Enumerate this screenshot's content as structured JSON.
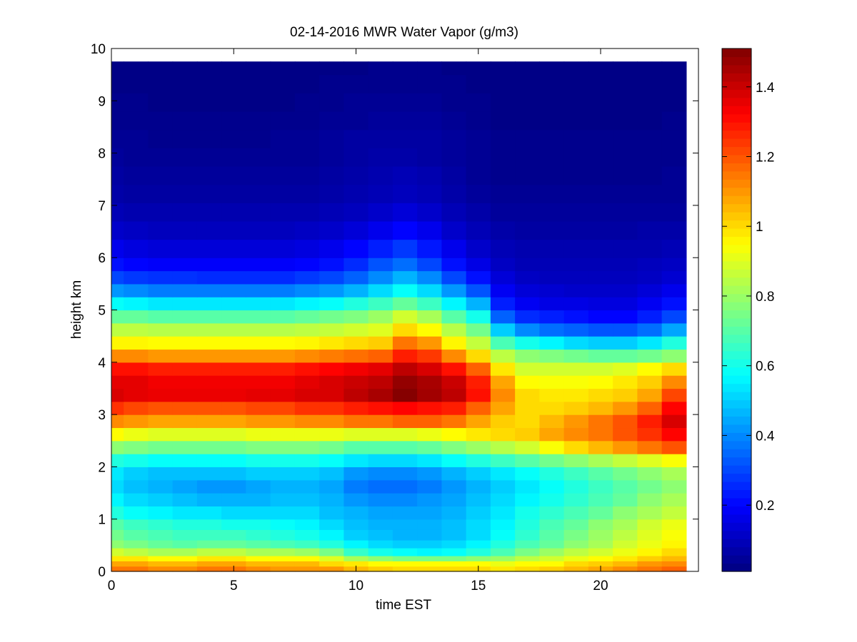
{
  "chart_data": {
    "type": "heatmap",
    "title": "02-14-2016 MWR Water Vapor (g/m3)",
    "xlabel": "time EST",
    "ylabel": "height km",
    "xlim": [
      0,
      24
    ],
    "ylim": [
      0,
      10
    ],
    "x_ticks": [
      "0",
      "5",
      "10",
      "15",
      "20"
    ],
    "y_ticks": [
      "0",
      "1",
      "2",
      "3",
      "4",
      "5",
      "6",
      "7",
      "8",
      "9",
      "10"
    ],
    "colorbar": {
      "colormap": "jet",
      "range": [
        0.01,
        1.51
      ],
      "ticks": [
        "0.2",
        "0.4",
        "0.6",
        "0.8",
        "1",
        "1.2",
        "1.4"
      ]
    },
    "data_extent": {
      "x": [
        0,
        23.5
      ],
      "y": [
        0,
        9.75
      ]
    },
    "times": [
      0,
      1,
      2,
      3,
      4,
      5,
      6,
      7,
      8,
      9,
      10,
      11,
      12,
      13,
      14,
      15,
      16,
      17,
      18,
      19,
      20,
      21,
      22,
      23
    ],
    "heights": [
      0,
      0.1,
      0.2,
      0.3,
      0.45,
      0.6,
      0.8,
      1.0,
      1.25,
      1.5,
      1.75,
      2.0,
      2.25,
      2.5,
      2.75,
      3.0,
      3.25,
      3.5,
      3.75,
      4.0,
      4.25,
      4.5,
      4.75,
      5.0,
      5.25,
      5.5,
      5.75,
      6.0,
      6.35,
      6.7,
      7.05,
      7.4,
      7.75,
      8.1,
      8.45,
      8.8,
      9.15,
      9.5,
      9.75
    ],
    "values": [
      [
        1.15,
        1.15,
        1.12,
        1.12,
        1.15,
        1.15,
        1.12,
        1.1,
        1.1,
        1.1,
        1.05,
        1.02,
        1.0,
        1.0,
        1.0,
        1.0,
        0.98,
        1.0,
        1.02,
        1.05,
        1.08,
        1.12,
        1.15,
        1.18
      ],
      [
        1.08,
        1.08,
        1.05,
        1.05,
        1.08,
        1.08,
        1.05,
        1.05,
        1.05,
        1.0,
        0.98,
        0.95,
        0.95,
        0.95,
        0.95,
        0.95,
        0.92,
        0.95,
        0.95,
        1.0,
        1.02,
        1.05,
        1.1,
        1.12
      ],
      [
        0.98,
        0.98,
        0.95,
        0.95,
        0.98,
        0.98,
        0.95,
        0.95,
        0.95,
        0.9,
        0.82,
        0.78,
        0.75,
        0.75,
        0.75,
        0.78,
        0.8,
        0.85,
        0.88,
        0.92,
        0.95,
        0.98,
        1.02,
        1.05
      ],
      [
        0.88,
        0.85,
        0.82,
        0.82,
        0.85,
        0.85,
        0.82,
        0.82,
        0.8,
        0.75,
        0.65,
        0.6,
        0.58,
        0.56,
        0.58,
        0.62,
        0.68,
        0.75,
        0.8,
        0.85,
        0.88,
        0.92,
        0.96,
        1.0
      ],
      [
        0.78,
        0.75,
        0.72,
        0.7,
        0.72,
        0.72,
        0.7,
        0.68,
        0.66,
        0.62,
        0.56,
        0.52,
        0.5,
        0.5,
        0.52,
        0.56,
        0.62,
        0.68,
        0.72,
        0.78,
        0.82,
        0.88,
        0.92,
        0.96
      ],
      [
        0.74,
        0.7,
        0.68,
        0.66,
        0.66,
        0.66,
        0.64,
        0.62,
        0.6,
        0.56,
        0.5,
        0.48,
        0.46,
        0.46,
        0.48,
        0.52,
        0.58,
        0.64,
        0.7,
        0.75,
        0.8,
        0.85,
        0.9,
        0.94
      ],
      [
        0.7,
        0.66,
        0.64,
        0.62,
        0.62,
        0.6,
        0.6,
        0.58,
        0.56,
        0.52,
        0.48,
        0.46,
        0.46,
        0.46,
        0.48,
        0.52,
        0.56,
        0.62,
        0.68,
        0.72,
        0.78,
        0.82,
        0.88,
        0.92
      ],
      [
        0.62,
        0.58,
        0.56,
        0.54,
        0.54,
        0.52,
        0.52,
        0.52,
        0.52,
        0.48,
        0.46,
        0.44,
        0.44,
        0.44,
        0.46,
        0.5,
        0.54,
        0.6,
        0.64,
        0.68,
        0.72,
        0.78,
        0.82,
        0.86
      ],
      [
        0.56,
        0.52,
        0.5,
        0.48,
        0.46,
        0.46,
        0.46,
        0.48,
        0.48,
        0.46,
        0.42,
        0.4,
        0.4,
        0.42,
        0.44,
        0.48,
        0.52,
        0.56,
        0.6,
        0.64,
        0.68,
        0.72,
        0.78,
        0.82
      ],
      [
        0.52,
        0.48,
        0.46,
        0.44,
        0.42,
        0.42,
        0.44,
        0.46,
        0.46,
        0.44,
        0.38,
        0.36,
        0.36,
        0.38,
        0.42,
        0.46,
        0.5,
        0.54,
        0.58,
        0.62,
        0.66,
        0.7,
        0.74,
        0.78
      ],
      [
        0.54,
        0.5,
        0.48,
        0.48,
        0.48,
        0.48,
        0.5,
        0.5,
        0.5,
        0.48,
        0.42,
        0.4,
        0.4,
        0.42,
        0.46,
        0.5,
        0.54,
        0.58,
        0.62,
        0.66,
        0.7,
        0.74,
        0.78,
        0.82
      ],
      [
        0.62,
        0.6,
        0.58,
        0.58,
        0.58,
        0.58,
        0.6,
        0.6,
        0.6,
        0.58,
        0.54,
        0.52,
        0.52,
        0.54,
        0.58,
        0.62,
        0.66,
        0.7,
        0.74,
        0.78,
        0.82,
        0.86,
        0.9,
        0.94
      ],
      [
        0.78,
        0.76,
        0.74,
        0.74,
        0.74,
        0.74,
        0.76,
        0.76,
        0.76,
        0.74,
        0.7,
        0.7,
        0.7,
        0.72,
        0.76,
        0.8,
        0.84,
        0.88,
        0.94,
        1.0,
        1.05,
        1.1,
        1.15,
        1.2
      ],
      [
        0.95,
        0.92,
        0.9,
        0.9,
        0.9,
        0.9,
        0.92,
        0.92,
        0.92,
        0.92,
        0.9,
        0.9,
        0.9,
        0.92,
        0.95,
        0.98,
        1.0,
        1.02,
        1.08,
        1.12,
        1.15,
        1.2,
        1.25,
        1.32
      ],
      [
        1.12,
        1.1,
        1.08,
        1.08,
        1.08,
        1.08,
        1.1,
        1.1,
        1.12,
        1.12,
        1.15,
        1.15,
        1.18,
        1.18,
        1.15,
        1.08,
        1.02,
        1.0,
        1.05,
        1.1,
        1.15,
        1.2,
        1.28,
        1.38
      ],
      [
        1.25,
        1.22,
        1.2,
        1.2,
        1.2,
        1.2,
        1.22,
        1.22,
        1.25,
        1.25,
        1.28,
        1.3,
        1.32,
        1.3,
        1.28,
        1.18,
        1.08,
        1.0,
        1.0,
        1.02,
        1.05,
        1.1,
        1.18,
        1.32
      ],
      [
        1.38,
        1.36,
        1.35,
        1.35,
        1.35,
        1.35,
        1.36,
        1.36,
        1.38,
        1.38,
        1.42,
        1.45,
        1.5,
        1.46,
        1.42,
        1.3,
        1.12,
        1.0,
        0.98,
        0.98,
        1.0,
        1.02,
        1.08,
        1.22
      ],
      [
        1.36,
        1.36,
        1.34,
        1.34,
        1.34,
        1.34,
        1.34,
        1.34,
        1.36,
        1.38,
        1.4,
        1.42,
        1.48,
        1.45,
        1.4,
        1.28,
        1.08,
        0.95,
        0.94,
        0.94,
        0.95,
        0.98,
        1.02,
        1.12
      ],
      [
        1.3,
        1.3,
        1.28,
        1.28,
        1.28,
        1.28,
        1.28,
        1.28,
        1.3,
        1.32,
        1.34,
        1.36,
        1.42,
        1.38,
        1.3,
        1.18,
        0.98,
        0.88,
        0.88,
        0.88,
        0.88,
        0.9,
        0.95,
        1.0
      ],
      [
        1.12,
        1.12,
        1.1,
        1.1,
        1.1,
        1.1,
        1.1,
        1.1,
        1.12,
        1.14,
        1.16,
        1.18,
        1.28,
        1.24,
        1.12,
        1.0,
        0.85,
        0.78,
        0.76,
        0.74,
        0.72,
        0.72,
        0.74,
        0.78
      ],
      [
        0.96,
        0.96,
        0.95,
        0.95,
        0.95,
        0.95,
        0.95,
        0.95,
        0.96,
        0.98,
        1.0,
        1.02,
        1.15,
        1.1,
        0.96,
        0.86,
        0.68,
        0.6,
        0.56,
        0.52,
        0.5,
        0.5,
        0.54,
        0.62
      ],
      [
        0.85,
        0.85,
        0.84,
        0.84,
        0.84,
        0.84,
        0.84,
        0.84,
        0.85,
        0.86,
        0.88,
        0.9,
        1.0,
        0.95,
        0.84,
        0.74,
        0.5,
        0.4,
        0.36,
        0.34,
        0.32,
        0.32,
        0.36,
        0.44
      ],
      [
        0.72,
        0.72,
        0.7,
        0.7,
        0.7,
        0.7,
        0.7,
        0.7,
        0.72,
        0.74,
        0.76,
        0.8,
        0.88,
        0.82,
        0.7,
        0.6,
        0.34,
        0.26,
        0.24,
        0.22,
        0.2,
        0.2,
        0.24,
        0.3
      ],
      [
        0.58,
        0.56,
        0.54,
        0.54,
        0.54,
        0.54,
        0.54,
        0.54,
        0.56,
        0.58,
        0.62,
        0.66,
        0.72,
        0.66,
        0.56,
        0.46,
        0.24,
        0.18,
        0.16,
        0.16,
        0.15,
        0.15,
        0.18,
        0.22
      ],
      [
        0.42,
        0.4,
        0.38,
        0.38,
        0.38,
        0.38,
        0.38,
        0.38,
        0.4,
        0.42,
        0.46,
        0.52,
        0.58,
        0.52,
        0.42,
        0.32,
        0.18,
        0.14,
        0.13,
        0.12,
        0.12,
        0.12,
        0.14,
        0.17
      ],
      [
        0.3,
        0.28,
        0.27,
        0.27,
        0.26,
        0.26,
        0.26,
        0.26,
        0.28,
        0.3,
        0.34,
        0.4,
        0.46,
        0.4,
        0.3,
        0.22,
        0.14,
        0.11,
        0.1,
        0.1,
        0.1,
        0.1,
        0.11,
        0.13
      ],
      [
        0.22,
        0.2,
        0.19,
        0.19,
        0.19,
        0.19,
        0.19,
        0.19,
        0.2,
        0.22,
        0.26,
        0.32,
        0.36,
        0.3,
        0.22,
        0.16,
        0.11,
        0.09,
        0.09,
        0.09,
        0.09,
        0.09,
        0.1,
        0.11
      ],
      [
        0.17,
        0.15,
        0.14,
        0.14,
        0.14,
        0.14,
        0.14,
        0.14,
        0.15,
        0.17,
        0.2,
        0.24,
        0.28,
        0.23,
        0.17,
        0.12,
        0.09,
        0.08,
        0.08,
        0.08,
        0.08,
        0.08,
        0.08,
        0.09
      ],
      [
        0.12,
        0.11,
        0.1,
        0.1,
        0.1,
        0.1,
        0.1,
        0.1,
        0.11,
        0.12,
        0.14,
        0.17,
        0.2,
        0.17,
        0.12,
        0.09,
        0.07,
        0.06,
        0.06,
        0.06,
        0.06,
        0.06,
        0.07,
        0.07
      ],
      [
        0.09,
        0.08,
        0.08,
        0.08,
        0.08,
        0.08,
        0.08,
        0.08,
        0.08,
        0.09,
        0.1,
        0.12,
        0.14,
        0.12,
        0.09,
        0.07,
        0.05,
        0.05,
        0.05,
        0.05,
        0.05,
        0.05,
        0.05,
        0.05
      ],
      [
        0.07,
        0.06,
        0.06,
        0.06,
        0.06,
        0.06,
        0.06,
        0.06,
        0.06,
        0.07,
        0.08,
        0.09,
        0.1,
        0.09,
        0.07,
        0.05,
        0.04,
        0.04,
        0.04,
        0.04,
        0.04,
        0.04,
        0.04,
        0.04
      ],
      [
        0.06,
        0.05,
        0.05,
        0.05,
        0.05,
        0.05,
        0.05,
        0.05,
        0.05,
        0.06,
        0.07,
        0.08,
        0.09,
        0.08,
        0.06,
        0.04,
        0.03,
        0.03,
        0.03,
        0.03,
        0.03,
        0.03,
        0.03,
        0.04
      ],
      [
        0.05,
        0.04,
        0.04,
        0.04,
        0.04,
        0.04,
        0.04,
        0.04,
        0.04,
        0.05,
        0.06,
        0.07,
        0.07,
        0.06,
        0.05,
        0.04,
        0.03,
        0.03,
        0.03,
        0.03,
        0.03,
        0.03,
        0.03,
        0.03
      ],
      [
        0.04,
        0.04,
        0.03,
        0.03,
        0.03,
        0.03,
        0.03,
        0.04,
        0.04,
        0.05,
        0.06,
        0.06,
        0.06,
        0.06,
        0.05,
        0.04,
        0.03,
        0.03,
        0.03,
        0.03,
        0.03,
        0.03,
        0.03,
        0.03
      ],
      [
        0.03,
        0.03,
        0.03,
        0.03,
        0.03,
        0.03,
        0.03,
        0.03,
        0.03,
        0.04,
        0.04,
        0.05,
        0.05,
        0.05,
        0.04,
        0.03,
        0.02,
        0.02,
        0.02,
        0.02,
        0.02,
        0.02,
        0.02,
        0.03
      ],
      [
        0.03,
        0.03,
        0.02,
        0.02,
        0.02,
        0.02,
        0.02,
        0.02,
        0.03,
        0.03,
        0.04,
        0.04,
        0.04,
        0.04,
        0.03,
        0.03,
        0.02,
        0.02,
        0.02,
        0.02,
        0.02,
        0.02,
        0.02,
        0.02
      ],
      [
        0.02,
        0.02,
        0.02,
        0.02,
        0.02,
        0.02,
        0.02,
        0.02,
        0.02,
        0.03,
        0.03,
        0.03,
        0.03,
        0.03,
        0.03,
        0.02,
        0.02,
        0.02,
        0.02,
        0.02,
        0.02,
        0.02,
        0.02,
        0.02
      ],
      [
        0.02,
        0.02,
        0.02,
        0.02,
        0.02,
        0.02,
        0.02,
        0.02,
        0.02,
        0.02,
        0.02,
        0.03,
        0.03,
        0.03,
        0.02,
        0.02,
        0.02,
        0.02,
        0.02,
        0.02,
        0.02,
        0.02,
        0.02,
        0.02
      ],
      [
        0.02,
        0.02,
        0.02,
        0.02,
        0.02,
        0.02,
        0.02,
        0.02,
        0.02,
        0.02,
        0.02,
        0.02,
        0.02,
        0.02,
        0.02,
        0.02,
        0.02,
        0.02,
        0.02,
        0.02,
        0.02,
        0.02,
        0.02,
        0.02
      ]
    ]
  }
}
